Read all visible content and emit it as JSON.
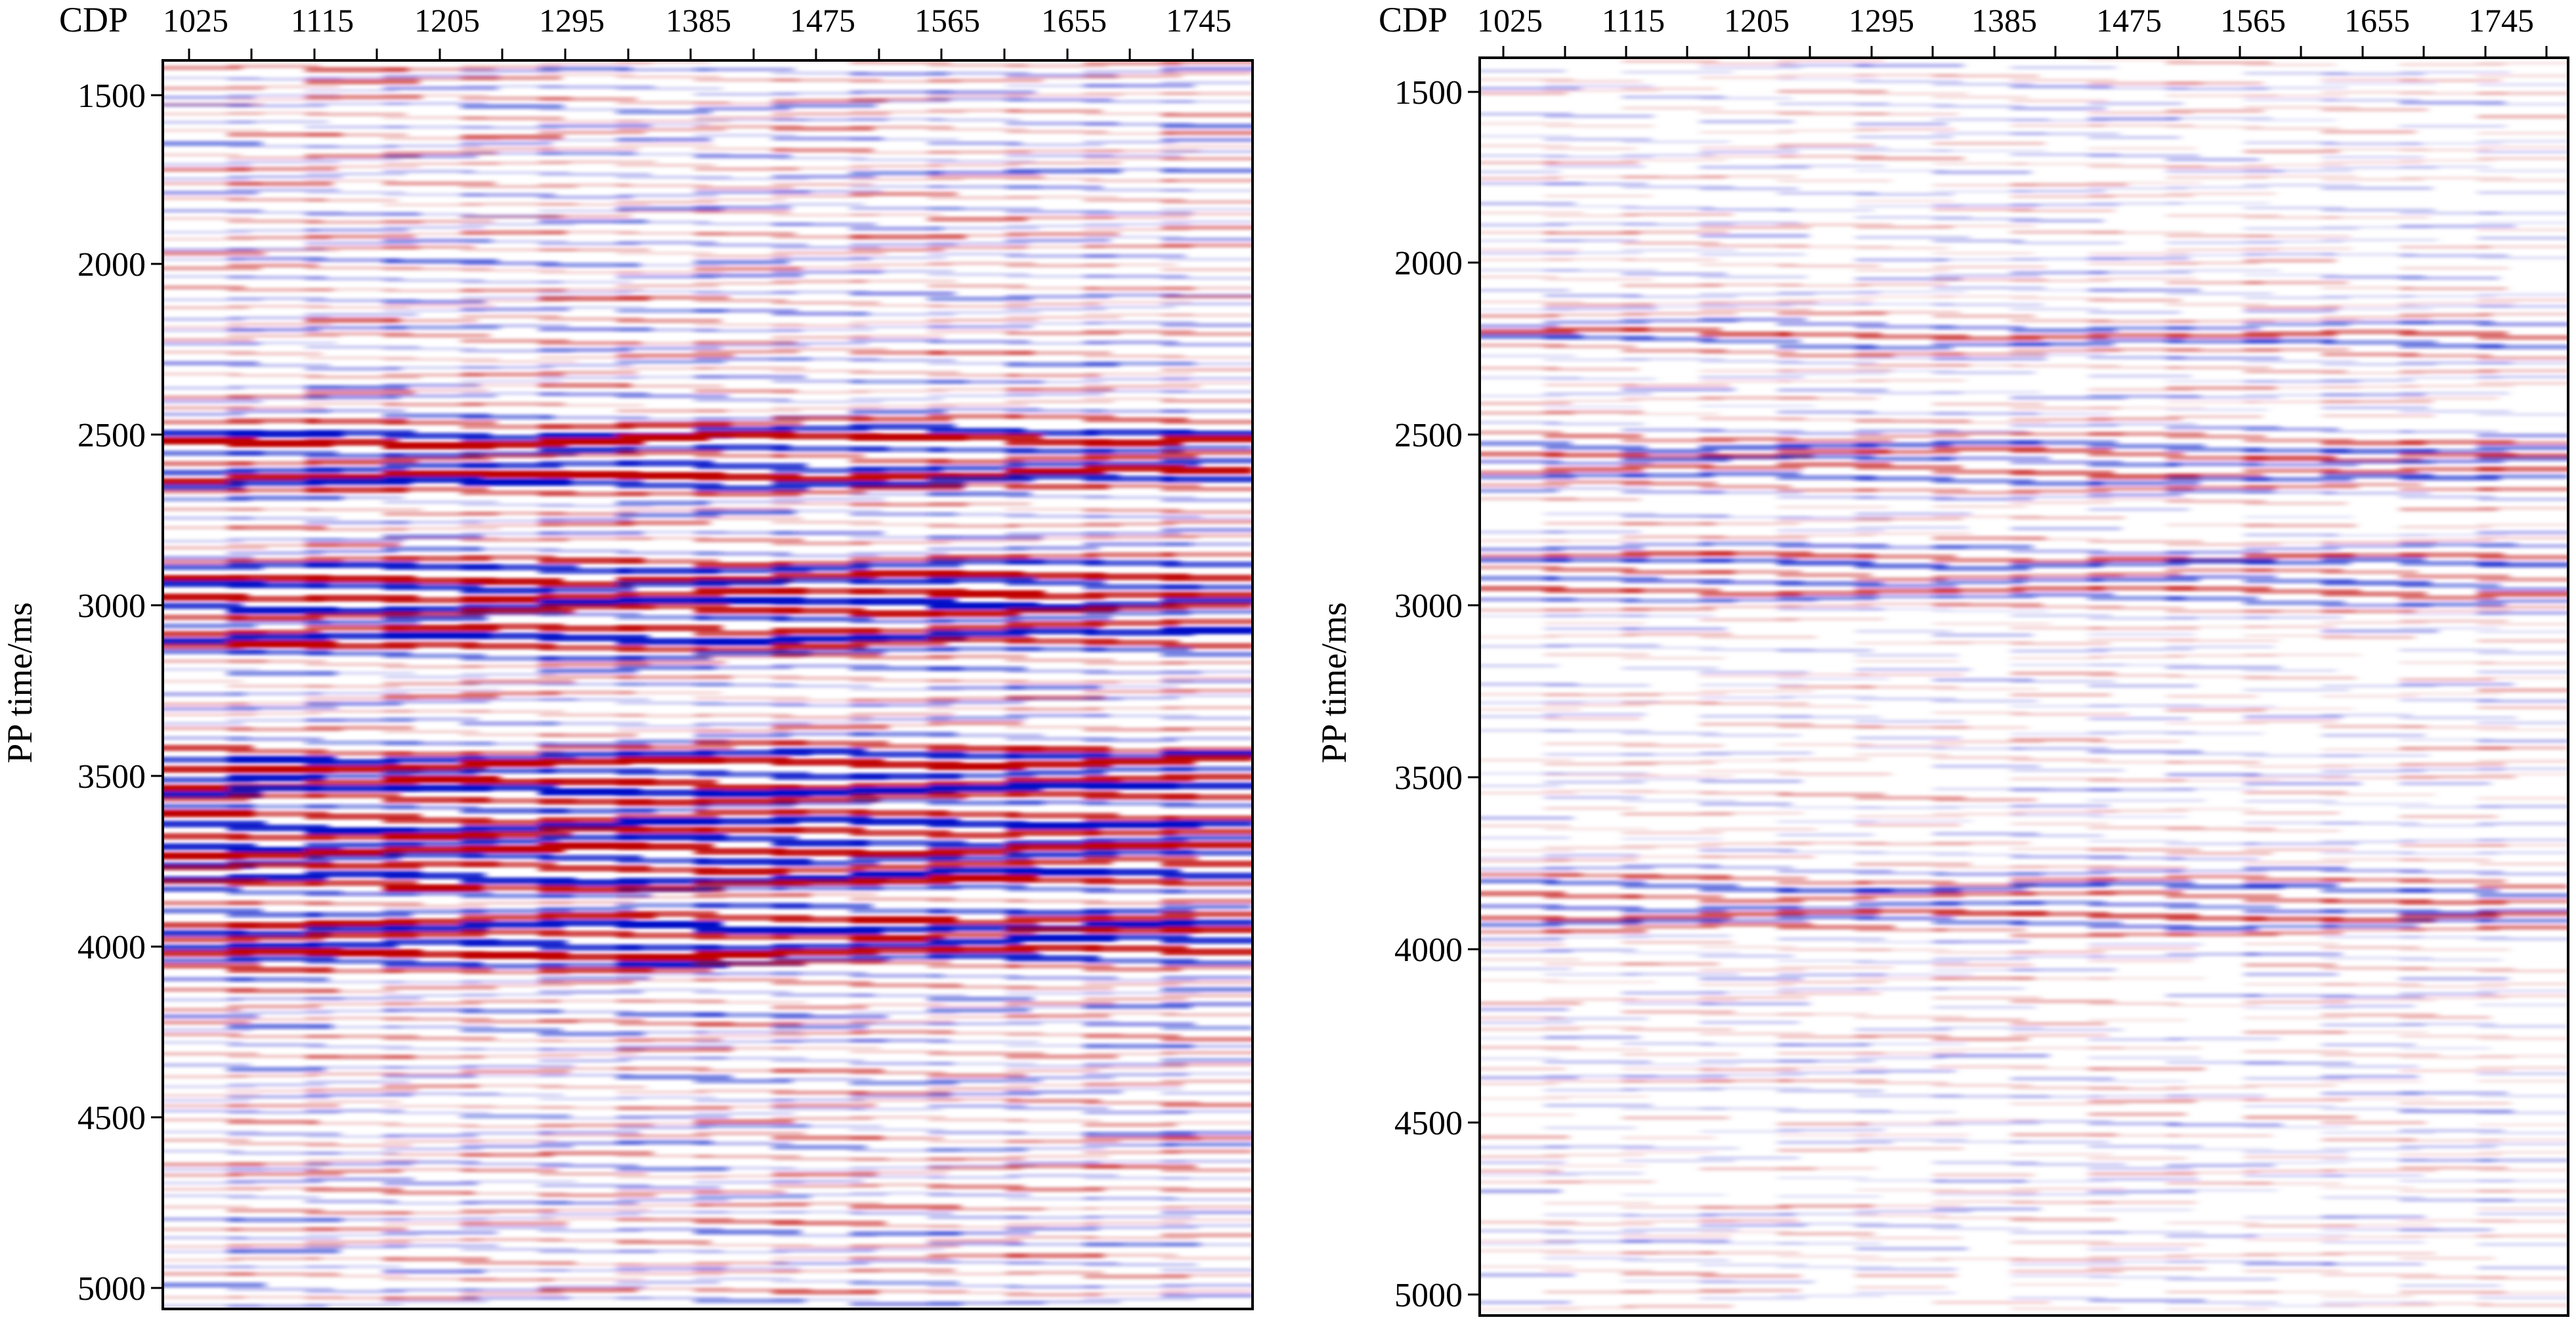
{
  "colors": {
    "positive": "#c00000",
    "negative": "#0010c8",
    "background": "#ffffff",
    "frame": "#000000"
  },
  "panels": [
    {
      "id": "left",
      "top_label": "CDP",
      "x_ticks": [
        "1025",
        "1115",
        "1205",
        "1295",
        "1385",
        "1475",
        "1565",
        "1655",
        "1745"
      ],
      "y_label": "PP time/ms",
      "y_ticks": [
        "1500",
        "2000",
        "2500",
        "3000",
        "3500",
        "4000",
        "4500",
        "5000"
      ]
    },
    {
      "id": "right",
      "top_label": "CDP",
      "x_ticks": [
        "1025",
        "1115",
        "1205",
        "1295",
        "1385",
        "1475",
        "1565",
        "1655",
        "1745"
      ],
      "y_label": "PP time/ms",
      "y_ticks": [
        "1500",
        "2000",
        "2500",
        "3000",
        "3500",
        "4000",
        "4500",
        "5000"
      ]
    }
  ]
}
